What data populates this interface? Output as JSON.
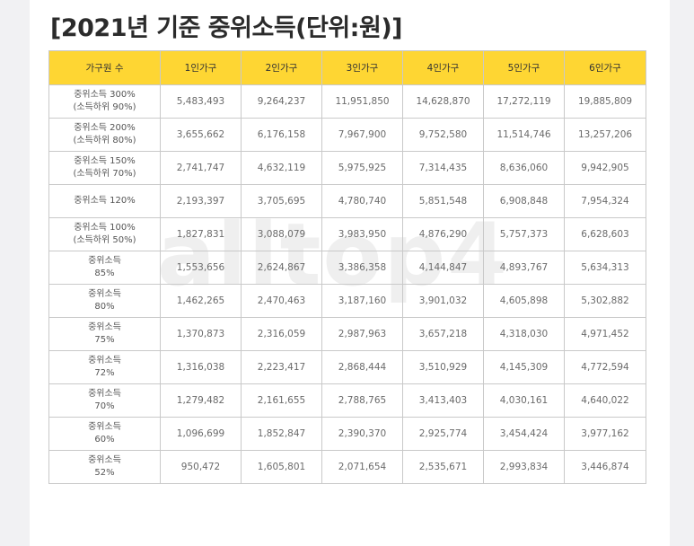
{
  "title": "[2021년 기준 중위소득(단위:원)]",
  "watermark": "alltop4",
  "colors": {
    "header_bg": "#fed633",
    "border": "#c9c9c9",
    "text": "#6a6a6a"
  },
  "table": {
    "headers": [
      "가구원 수",
      "1인가구",
      "2인가구",
      "3인가구",
      "4인가구",
      "5인가구",
      "6인가구"
    ],
    "rows": [
      {
        "label": [
          "중위소득 300%",
          "(소득하위 90%)"
        ],
        "values": [
          "5,483,493",
          "9,264,237",
          "11,951,850",
          "14,628,870",
          "17,272,119",
          "19,885,809"
        ]
      },
      {
        "label": [
          "중위소득 200%",
          "(소득하위 80%)"
        ],
        "values": [
          "3,655,662",
          "6,176,158",
          "7,967,900",
          "9,752,580",
          "11,514,746",
          "13,257,206"
        ]
      },
      {
        "label": [
          "중위소득 150%",
          "(소득하위 70%)"
        ],
        "values": [
          "2,741,747",
          "4,632,119",
          "5,975,925",
          "7,314,435",
          "8,636,060",
          "9,942,905"
        ]
      },
      {
        "label": [
          "중위소득 120%",
          ""
        ],
        "values": [
          "2,193,397",
          "3,705,695",
          "4,780,740",
          "5,851,548",
          "6,908,848",
          "7,954,324"
        ]
      },
      {
        "label": [
          "중위소득 100%",
          "(소득하위 50%)"
        ],
        "values": [
          "1,827,831",
          "3,088,079",
          "3,983,950",
          "4,876,290",
          "5,757,373",
          "6,628,603"
        ]
      },
      {
        "label": [
          "중위소득",
          "85%"
        ],
        "values": [
          "1,553,656",
          "2,624,867",
          "3,386,358",
          "4,144,847",
          "4,893,767",
          "5,634,313"
        ]
      },
      {
        "label": [
          "중위소득",
          "80%"
        ],
        "values": [
          "1,462,265",
          "2,470,463",
          "3,187,160",
          "3,901,032",
          "4,605,898",
          "5,302,882"
        ]
      },
      {
        "label": [
          "중위소득",
          "75%"
        ],
        "values": [
          "1,370,873",
          "2,316,059",
          "2,987,963",
          "3,657,218",
          "4,318,030",
          "4,971,452"
        ]
      },
      {
        "label": [
          "중위소득",
          "72%"
        ],
        "values": [
          "1,316,038",
          "2,223,417",
          "2,868,444",
          "3,510,929",
          "4,145,309",
          "4,772,594"
        ]
      },
      {
        "label": [
          "중위소득",
          "70%"
        ],
        "values": [
          "1,279,482",
          "2,161,655",
          "2,788,765",
          "3,413,403",
          "4,030,161",
          "4,640,022"
        ]
      },
      {
        "label": [
          "중위소득",
          "60%"
        ],
        "values": [
          "1,096,699",
          "1,852,847",
          "2,390,370",
          "2,925,774",
          "3,454,424",
          "3,977,162"
        ]
      },
      {
        "label": [
          "중위소득",
          "52%"
        ],
        "values": [
          "950,472",
          "1,605,801",
          "2,071,654",
          "2,535,671",
          "2,993,834",
          "3,446,874"
        ]
      }
    ]
  }
}
